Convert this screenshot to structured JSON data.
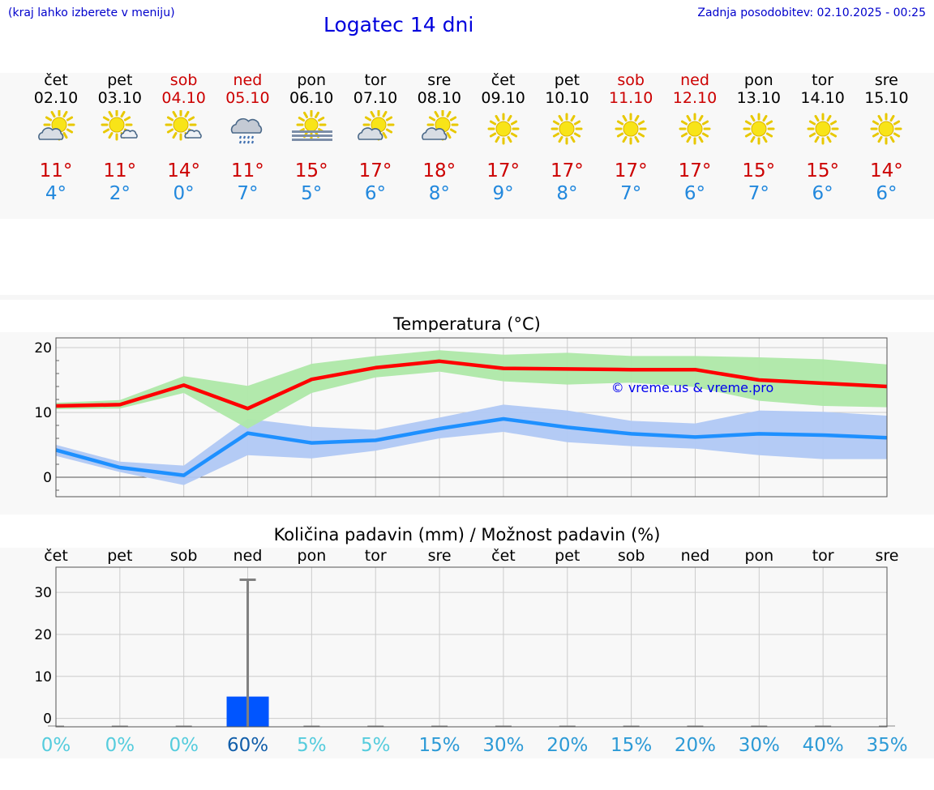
{
  "header": {
    "location_hint": "(kraj lahko izberete v meniju)",
    "title": "Logatec 14 dni",
    "updated": "Zadnja posodobitev: 02.10.2025 - 00:25"
  },
  "colors": {
    "max_temp": "#ff0000",
    "min_temp": "#1e90ff",
    "max_band": "#aee8a8",
    "min_band": "#b0c8f4",
    "precip_bar": "#0055ff",
    "weekend": "#cc0000",
    "prob_low": "#55ccdd",
    "prob_mid": "#2c9ad6",
    "prob_high": "#115eaa"
  },
  "days": [
    {
      "name": "čet",
      "date": "02.10",
      "weekend": false,
      "icon": "sun-cloud-icon",
      "max": "11°",
      "min": "4°"
    },
    {
      "name": "pet",
      "date": "03.10",
      "weekend": false,
      "icon": "sun-small-cloud-icon",
      "max": "11°",
      "min": "2°"
    },
    {
      "name": "sob",
      "date": "04.10",
      "weekend": true,
      "icon": "sun-small-cloud-icon",
      "max": "14°",
      "min": "0°"
    },
    {
      "name": "ned",
      "date": "05.10",
      "weekend": true,
      "icon": "rain-cloud-icon",
      "max": "11°",
      "min": "7°"
    },
    {
      "name": "pon",
      "date": "06.10",
      "weekend": false,
      "icon": "sun-fog-icon",
      "max": "15°",
      "min": "5°"
    },
    {
      "name": "tor",
      "date": "07.10",
      "weekend": false,
      "icon": "sun-cloud-icon",
      "max": "17°",
      "min": "6°"
    },
    {
      "name": "sre",
      "date": "08.10",
      "weekend": false,
      "icon": "sun-cloud-icon",
      "max": "18°",
      "min": "8°"
    },
    {
      "name": "čet",
      "date": "09.10",
      "weekend": false,
      "icon": "sun-icon",
      "max": "17°",
      "min": "9°"
    },
    {
      "name": "pet",
      "date": "10.10",
      "weekend": false,
      "icon": "sun-icon",
      "max": "17°",
      "min": "8°"
    },
    {
      "name": "sob",
      "date": "11.10",
      "weekend": true,
      "icon": "sun-icon",
      "max": "17°",
      "min": "7°"
    },
    {
      "name": "ned",
      "date": "12.10",
      "weekend": true,
      "icon": "sun-icon",
      "max": "17°",
      "min": "6°"
    },
    {
      "name": "pon",
      "date": "13.10",
      "weekend": false,
      "icon": "sun-icon",
      "max": "15°",
      "min": "7°"
    },
    {
      "name": "tor",
      "date": "14.10",
      "weekend": false,
      "icon": "sun-icon",
      "max": "15°",
      "min": "6°"
    },
    {
      "name": "sre",
      "date": "15.10",
      "weekend": false,
      "icon": "sun-icon",
      "max": "14°",
      "min": "6°"
    }
  ],
  "chart_data": [
    {
      "type": "line",
      "title": "Temperatura (°C)",
      "x": [
        "02.10",
        "03.10",
        "04.10",
        "05.10",
        "06.10",
        "07.10",
        "08.10",
        "09.10",
        "10.10",
        "11.10",
        "12.10",
        "13.10",
        "14.10",
        "15.10"
      ],
      "ylim": [
        -3,
        21.5
      ],
      "yticks": [
        "0",
        "10",
        "20"
      ],
      "grid": true,
      "watermark": "© vreme.us & vreme.pro",
      "series": [
        {
          "role": "max",
          "values": [
            11,
            11.2,
            14.2,
            10.6,
            15.1,
            16.9,
            17.9,
            16.8,
            16.7,
            16.6,
            16.6,
            15,
            14.5,
            14
          ],
          "band_high": [
            11.5,
            11.9,
            15.6,
            14.1,
            17.5,
            18.7,
            19.6,
            18.9,
            19.2,
            18.7,
            18.7,
            18.5,
            18.2,
            17.4
          ],
          "band_low": [
            10.5,
            10.6,
            13,
            7.5,
            13,
            15.4,
            16.3,
            14.8,
            14.3,
            14.6,
            13.9,
            11.8,
            11,
            10.8
          ]
        },
        {
          "role": "min",
          "values": [
            4.2,
            1.5,
            0.3,
            6.8,
            5.3,
            5.7,
            7.5,
            9,
            7.7,
            6.7,
            6.2,
            6.7,
            6.5,
            6.1
          ],
          "band_high": [
            5,
            2.4,
            1.8,
            9,
            7.8,
            7.3,
            9.2,
            11.2,
            10.3,
            8.7,
            8.3,
            10.3,
            10.1,
            9.5
          ],
          "band_low": [
            3.3,
            0.8,
            -1.2,
            3.4,
            2.9,
            4.1,
            6,
            7,
            5.4,
            4.8,
            4.4,
            3.4,
            2.8,
            2.8
          ]
        }
      ]
    },
    {
      "type": "bar",
      "title": "Količina padavin (mm) / Možnost padavin (%)",
      "categories": [
        "čet",
        "pet",
        "sob",
        "ned",
        "pon",
        "tor",
        "sre",
        "čet",
        "pet",
        "sob",
        "ned",
        "pon",
        "tor",
        "sre"
      ],
      "values": [
        0,
        0,
        0,
        5.2,
        0,
        0,
        0,
        0,
        0,
        0,
        0,
        0,
        0,
        0
      ],
      "error_high": [
        0,
        0,
        0,
        33,
        0,
        0,
        0,
        0,
        0,
        0,
        0,
        0,
        0,
        0
      ],
      "ylim": [
        -2,
        36
      ],
      "yticks": [
        "0",
        "10",
        "20",
        "30"
      ],
      "grid": true,
      "probabilities": [
        "0%",
        "0%",
        "0%",
        "60%",
        "5%",
        "5%",
        "15%",
        "30%",
        "20%",
        "15%",
        "20%",
        "30%",
        "40%",
        "35%"
      ]
    }
  ]
}
